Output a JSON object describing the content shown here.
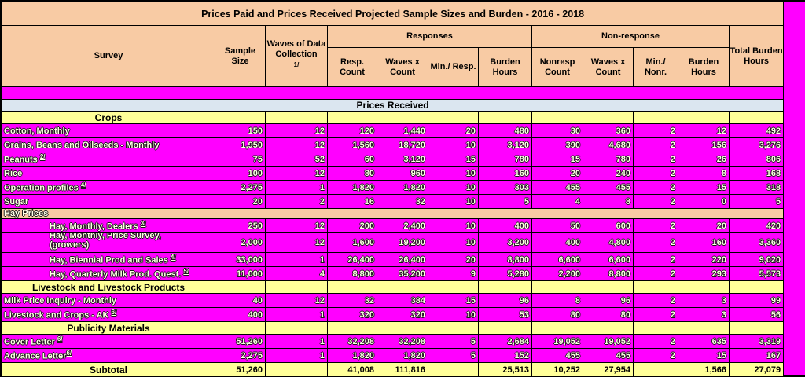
{
  "title": "Prices Paid and Prices Received Projected Sample Sizes and Burden - 2016 - 2018",
  "colors": {
    "magenta": "#FF00FF",
    "peach": "#F8CBA4",
    "yellow": "#FFFF99",
    "light_blue": "#DBE6F0",
    "border": "#000000"
  },
  "header": {
    "survey": "Survey",
    "sample_size": "Sample Size",
    "waves": "Waves of Data Collection",
    "waves_footnote": "1/",
    "responses_group": "Responses",
    "nonresponse_group": "Non-response",
    "resp_count": "Resp. Count",
    "resp_waves_x_count": "Waves x Count",
    "min_resp": "Min./ Resp.",
    "resp_burden_hours": "Burden Hours",
    "nonresp_count": "Nonresp Count",
    "nonresp_waves_x_count": "Waves x Count",
    "min_nonr": "Min./ Nonr.",
    "nonresp_burden_hours": "Burden Hours",
    "total_burden_hours": "Total Burden Hours"
  },
  "rows": [
    {
      "type": "blank"
    },
    {
      "type": "band",
      "label": "Prices Received"
    },
    {
      "type": "section",
      "label": "Crops"
    },
    {
      "type": "data",
      "label": "Cotton, Monthly",
      "values": [
        "150",
        "12",
        "120",
        "1,440",
        "20",
        "480",
        "30",
        "360",
        "2",
        "12",
        "492"
      ]
    },
    {
      "type": "data",
      "label": "Grains, Beans and Oilseeds - Monthly",
      "values": [
        "1,950",
        "12",
        "1,560",
        "18,720",
        "10",
        "3,120",
        "390",
        "4,680",
        "2",
        "156",
        "3,276"
      ]
    },
    {
      "type": "data",
      "label": "Peanuts ",
      "sup": "2/",
      "values": [
        "75",
        "52",
        "60",
        "3,120",
        "15",
        "780",
        "15",
        "780",
        "2",
        "26",
        "806"
      ]
    },
    {
      "type": "data",
      "label": "Rice",
      "values": [
        "100",
        "12",
        "80",
        "960",
        "10",
        "160",
        "20",
        "240",
        "2",
        "8",
        "168"
      ]
    },
    {
      "type": "data",
      "label": "Operation profiles ",
      "sup": "4/",
      "values": [
        "2,275",
        "1",
        "1,820",
        "1,820",
        "10",
        "303",
        "455",
        "455",
        "2",
        "15",
        "318"
      ]
    },
    {
      "type": "data",
      "label": "Sugar",
      "values": [
        "20",
        "2",
        "16",
        "32",
        "10",
        "5",
        "4",
        "8",
        "2",
        "0",
        "5"
      ]
    },
    {
      "type": "grouplabel",
      "label": "Hay Prices"
    },
    {
      "type": "data",
      "label": "Hay, Monthly, Dealers ",
      "sup": "3/",
      "indent": true,
      "values": [
        "250",
        "12",
        "200",
        "2,400",
        "10",
        "400",
        "50",
        "600",
        "2",
        "20",
        "420"
      ]
    },
    {
      "type": "data2",
      "label_line1": "Hay, Monthly, Price Survey,",
      "label_line2": "(growers)",
      "indent": true,
      "values": [
        "2,000",
        "12",
        "1,600",
        "19,200",
        "10",
        "3,200",
        "400",
        "4,800",
        "2",
        "160",
        "3,360"
      ]
    },
    {
      "type": "data",
      "label": "Hay, Biennial Prod and Sales ",
      "sup": "4/",
      "indent": true,
      "values": [
        "33,000",
        "1",
        "26,400",
        "26,400",
        "20",
        "8,800",
        "6,600",
        "6,600",
        "2",
        "220",
        "9,020"
      ]
    },
    {
      "type": "data",
      "label": "Hay, Quarterly Milk Prod. Quest. ",
      "sup": "5/",
      "indent": true,
      "values": [
        "11,000",
        "4",
        "8,800",
        "35,200",
        "9",
        "5,280",
        "2,200",
        "8,800",
        "2",
        "293",
        "5,573"
      ]
    },
    {
      "type": "section",
      "label": "Livestock and Livestock Products"
    },
    {
      "type": "data",
      "label": "Milk Price Inquiry - Monthly",
      "values": [
        "40",
        "12",
        "32",
        "384",
        "15",
        "96",
        "8",
        "96",
        "2",
        "3",
        "99"
      ]
    },
    {
      "type": "data",
      "label": "Livestock and Crops - AK ",
      "sup": "6/",
      "values": [
        "400",
        "1",
        "320",
        "320",
        "10",
        "53",
        "80",
        "80",
        "2",
        "3",
        "56"
      ]
    },
    {
      "type": "section",
      "label": "Publicity Materials"
    },
    {
      "type": "data",
      "label": "Cover Letter ",
      "sup": "6/",
      "values": [
        "51,260",
        "1",
        "32,208",
        "32,208",
        "5",
        "2,684",
        "19,052",
        "19,052",
        "2",
        "635",
        "3,319"
      ]
    },
    {
      "type": "data",
      "label": "Advance Letter",
      "sup": "6/",
      "values": [
        "2,275",
        "1",
        "1,820",
        "1,820",
        "5",
        "152",
        "455",
        "455",
        "2",
        "15",
        "167"
      ]
    },
    {
      "type": "subtotal",
      "label": "Subtotal",
      "values": [
        "51,260",
        "",
        "41,008",
        "111,816",
        "",
        "25,513",
        "10,252",
        "27,954",
        "",
        "1,566",
        "27,079"
      ]
    }
  ]
}
